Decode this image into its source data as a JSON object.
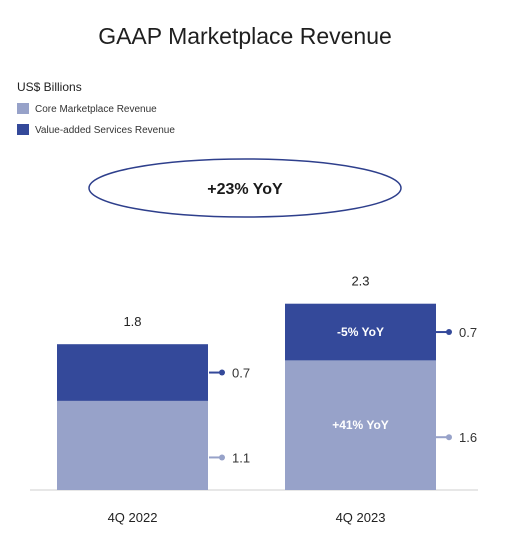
{
  "chart_data": {
    "type": "bar",
    "stacked": true,
    "title": "GAAP Marketplace Revenue",
    "units": "US$ Billions",
    "categories": [
      "4Q 2022",
      "4Q 2023"
    ],
    "series": [
      {
        "name": "Core Marketplace Revenue",
        "values": [
          1.1,
          1.6
        ],
        "color": "#97a2c9"
      },
      {
        "name": "Value-added Services Revenue",
        "values": [
          0.7,
          0.7
        ],
        "color": "#34499a"
      }
    ],
    "totals": [
      "1.8",
      "2.3"
    ],
    "segment_value_labels": [
      [
        "1.1",
        "1.6"
      ],
      [
        "0.7",
        "0.7"
      ]
    ],
    "segment_inside_labels": [
      [
        "",
        "+41% YoY"
      ],
      [
        "",
        "-5% YoY"
      ]
    ],
    "callout": "+23% YoY",
    "legend_position": "top-left",
    "grid": false,
    "ylim": [
      0,
      2.3
    ]
  }
}
